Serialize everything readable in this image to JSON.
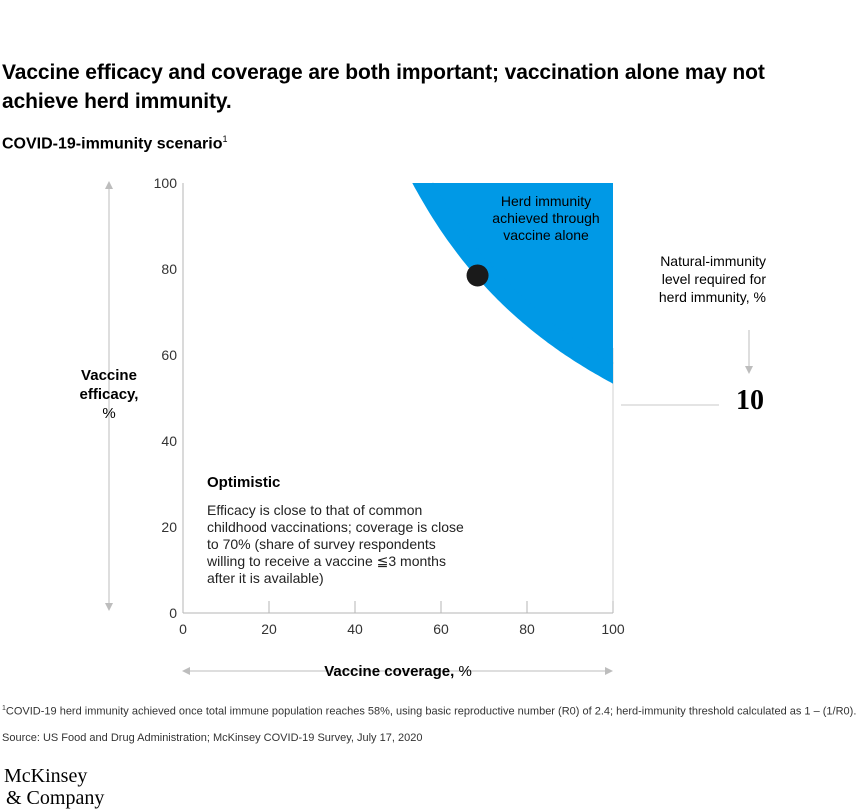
{
  "title": "Vaccine efficacy and coverage are both important; vaccination alone may not achieve herd immunity.",
  "subtitle": "COVID-19-immunity scenario",
  "subtitle_footnote_marker": "1",
  "footnote": {
    "marker": "1",
    "text": "COVID-19 herd immunity achieved once total immune population reaches 58%, using basic reproductive number (R0) of 2.4; herd-immunity threshold calculated as 1 – (1/R0)."
  },
  "source": "Source: US Food and Drug Administration; McKinsey COVID-19 Survey, July 17, 2020",
  "logo": {
    "line1": "McKinsey",
    "line2": "& Company"
  },
  "chart_data": {
    "type": "area",
    "x_axis": {
      "label": "Vaccine coverage, %",
      "range": [
        0,
        100
      ],
      "ticks": [
        "0",
        "20",
        "40",
        "60",
        "80",
        "100"
      ]
    },
    "y_axis": {
      "label_lines": [
        "Vaccine",
        "efficacy,",
        "%"
      ],
      "range": [
        0,
        100
      ],
      "ticks": [
        "0",
        "20",
        "40",
        "60",
        "80",
        "100"
      ]
    },
    "herd_immunity_threshold_percent": 58,
    "natural_immunity_percent": 10,
    "herd_region": {
      "label_lines": [
        "Herd immunity",
        "achieved through",
        "vaccine alone"
      ],
      "color": "#0099e6"
    },
    "dashed_curve": {
      "color": "#0099e6"
    },
    "scenario_point": {
      "x": 68.5,
      "y": 78.5,
      "color": "#1a1a1a"
    },
    "natural_immunity_label_lines": [
      "Natural-immunity",
      "level required for",
      "herd immunity, %"
    ],
    "natural_immunity_value": "10",
    "scenario": {
      "name": "Optimistic",
      "description_lines": [
        "Efficacy is close to that of common",
        "childhood vaccinations; coverage is close",
        "to 70% (share of survey respondents",
        "willing to receive a vaccine ≦3 months",
        "after it is available)"
      ]
    }
  }
}
